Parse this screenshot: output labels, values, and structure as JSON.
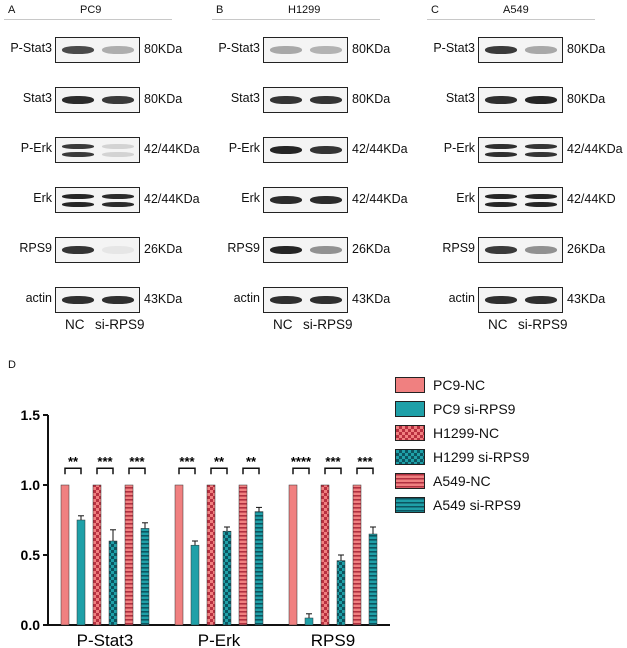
{
  "figure": {
    "panels": [
      {
        "letter": "A",
        "cell_line": "PC9",
        "rows": [
          {
            "protein": "P-Stat3",
            "size": "80KDa",
            "bands": [
              0.78,
              0.32
            ],
            "doublet": false
          },
          {
            "protein": "Stat3",
            "size": "80KDa",
            "bands": [
              0.92,
              0.85
            ],
            "doublet": false
          },
          {
            "protein": "P-Erk",
            "size": "42/44KDa",
            "bands": [
              0.85,
              0.15
            ],
            "doublet": true
          },
          {
            "protein": "Erk",
            "size": "42/44KDa",
            "bands": [
              0.95,
              0.92
            ],
            "doublet": true
          },
          {
            "protein": "RPS9",
            "size": "26KDa",
            "bands": [
              0.88,
              0.06
            ],
            "doublet": false
          },
          {
            "protein": "actin",
            "size": "43KDa",
            "bands": [
              0.9,
              0.9
            ],
            "doublet": false
          }
        ],
        "lanes": [
          "NC",
          "si-RPS9"
        ]
      },
      {
        "letter": "B",
        "cell_line": "H1299",
        "rows": [
          {
            "protein": "P-Stat3",
            "size": "80KDa",
            "bands": [
              0.35,
              0.3
            ],
            "doublet": false
          },
          {
            "protein": "Stat3",
            "size": "80KDa",
            "bands": [
              0.88,
              0.88
            ],
            "doublet": false
          },
          {
            "protein": "P-Erk",
            "size": "42/44KDa",
            "bands": [
              0.95,
              0.88
            ],
            "doublet": false
          },
          {
            "protein": "Erk",
            "size": "42/44KDa",
            "bands": [
              0.92,
              0.92
            ],
            "doublet": false
          },
          {
            "protein": "RPS9",
            "size": "26KDa",
            "bands": [
              0.95,
              0.45
            ],
            "doublet": false
          },
          {
            "protein": "actin",
            "size": "43KDa",
            "bands": [
              0.9,
              0.9
            ],
            "doublet": false
          }
        ],
        "lanes": [
          "NC",
          "si-RPS9"
        ]
      },
      {
        "letter": "C",
        "cell_line": "A549",
        "rows": [
          {
            "protein": "P-Stat3",
            "size": "80KDa",
            "bands": [
              0.85,
              0.35
            ],
            "doublet": false
          },
          {
            "protein": "Stat3",
            "size": "80KDa",
            "bands": [
              0.9,
              0.95
            ],
            "doublet": false
          },
          {
            "protein": "P-Erk",
            "size": "42/44KDa",
            "bands": [
              0.9,
              0.88
            ],
            "doublet": true
          },
          {
            "protein": "Erk",
            "size": "42/44KD",
            "bands": [
              0.95,
              0.95
            ],
            "doublet": true
          },
          {
            "protein": "RPS9",
            "size": "26KDa",
            "bands": [
              0.85,
              0.45
            ],
            "doublet": false
          },
          {
            "protein": "actin",
            "size": "43KDa",
            "bands": [
              0.9,
              0.9
            ],
            "doublet": false
          }
        ],
        "lanes": [
          "NC",
          "si-RPS9"
        ]
      }
    ]
  },
  "chart_data": {
    "type": "bar",
    "panel_letter": "D",
    "categories": [
      "P-Stat3",
      "P-Erk",
      "RPS9"
    ],
    "ylim": [
      0,
      1.5
    ],
    "yticks": [
      "0.0",
      "0.5",
      "1.0",
      "1.5"
    ],
    "grid": false,
    "legend_position": "top-right",
    "series": [
      {
        "name": "PC9-NC",
        "values": [
          1.0,
          1.0,
          1.0
        ],
        "errors": [
          0,
          0,
          0
        ],
        "color": "#f08080",
        "pattern": "solid"
      },
      {
        "name": "PC9 si-RPS9",
        "values": [
          0.75,
          0.57,
          0.05
        ],
        "errors": [
          0.03,
          0.03,
          0.03
        ],
        "color": "#1fa0a8",
        "pattern": "solid"
      },
      {
        "name": "H1299-NC",
        "values": [
          1.0,
          1.0,
          1.0
        ],
        "errors": [
          0,
          0,
          0
        ],
        "color": "#f08080",
        "pattern": "checker"
      },
      {
        "name": "H1299 si-RPS9",
        "values": [
          0.6,
          0.67,
          0.46
        ],
        "errors": [
          0.08,
          0.03,
          0.04
        ],
        "color": "#1fa0a8",
        "pattern": "checker"
      },
      {
        "name": "A549-NC",
        "values": [
          1.0,
          1.0,
          1.0
        ],
        "errors": [
          0,
          0,
          0
        ],
        "color": "#f08080",
        "pattern": "hstripe"
      },
      {
        "name": "A549 si-RPS9",
        "values": [
          0.69,
          0.81,
          0.65
        ],
        "errors": [
          0.04,
          0.03,
          0.05
        ],
        "color": "#1fa0a8",
        "pattern": "hstripe"
      }
    ],
    "significance": [
      [
        "**",
        "***",
        "***"
      ],
      [
        "***",
        "**",
        "**"
      ],
      [
        "****",
        "***",
        "***"
      ]
    ]
  }
}
